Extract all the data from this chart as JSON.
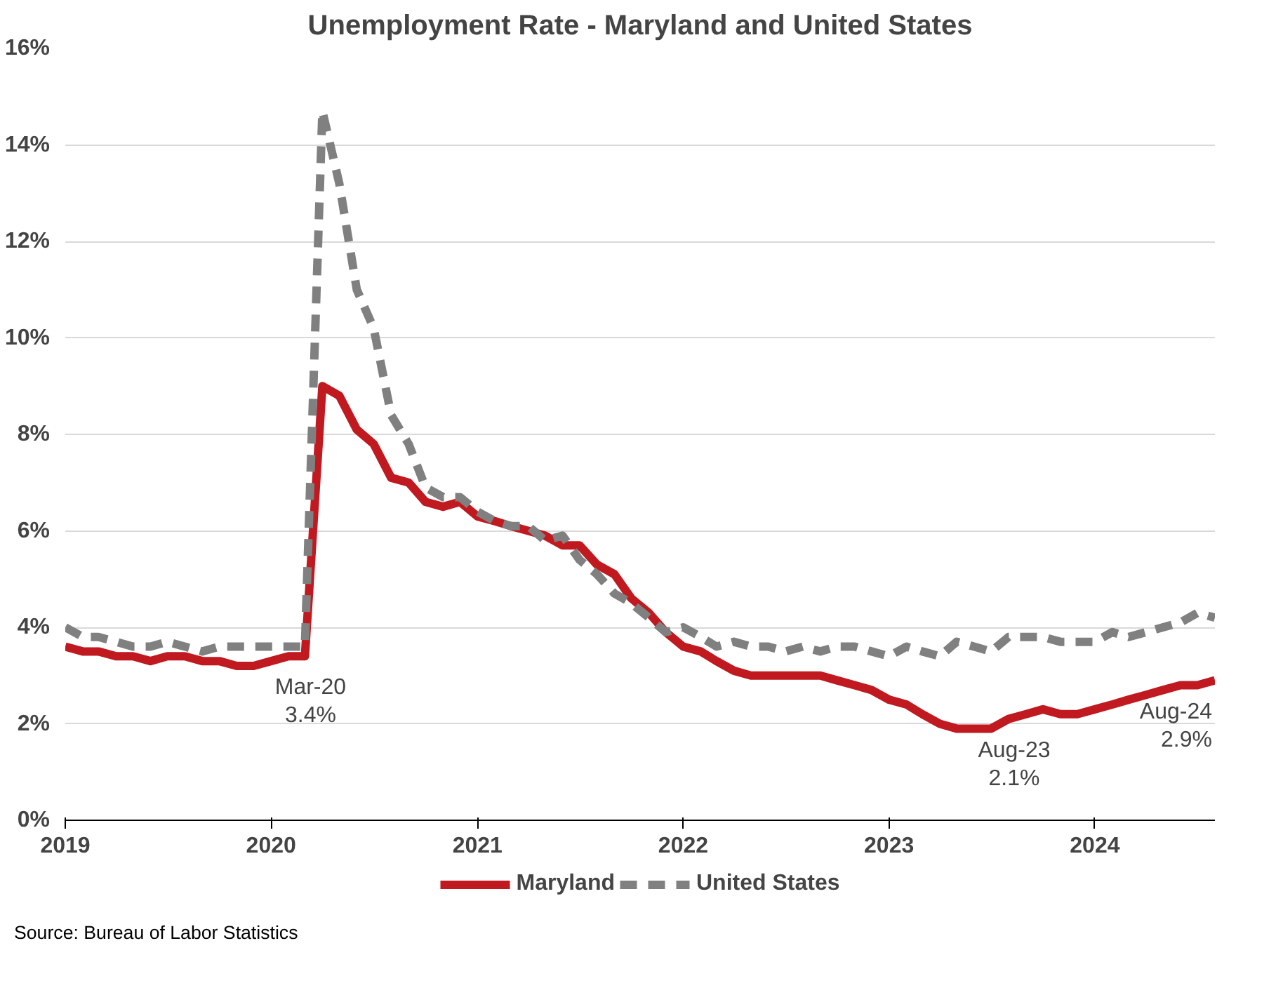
{
  "chart_data": {
    "type": "line",
    "title": "Unemployment Rate - Maryland and United States",
    "x": [
      "2019-01",
      "2019-02",
      "2019-03",
      "2019-04",
      "2019-05",
      "2019-06",
      "2019-07",
      "2019-08",
      "2019-09",
      "2019-10",
      "2019-11",
      "2019-12",
      "2020-01",
      "2020-02",
      "2020-03",
      "2020-04",
      "2020-05",
      "2020-06",
      "2020-07",
      "2020-08",
      "2020-09",
      "2020-10",
      "2020-11",
      "2020-12",
      "2021-01",
      "2021-02",
      "2021-03",
      "2021-04",
      "2021-05",
      "2021-06",
      "2021-07",
      "2021-08",
      "2021-09",
      "2021-10",
      "2021-11",
      "2021-12",
      "2022-01",
      "2022-02",
      "2022-03",
      "2022-04",
      "2022-05",
      "2022-06",
      "2022-07",
      "2022-08",
      "2022-09",
      "2022-10",
      "2022-11",
      "2022-12",
      "2023-01",
      "2023-02",
      "2023-03",
      "2023-04",
      "2023-05",
      "2023-06",
      "2023-07",
      "2023-08",
      "2023-09",
      "2023-10",
      "2023-11",
      "2023-12",
      "2024-01",
      "2024-02",
      "2024-03",
      "2024-04",
      "2024-05",
      "2024-06",
      "2024-07",
      "2024-08"
    ],
    "series": [
      {
        "name": "Maryland",
        "color": "#c0191f",
        "line_style": "solid",
        "values": [
          3.6,
          3.5,
          3.5,
          3.4,
          3.4,
          3.3,
          3.4,
          3.4,
          3.3,
          3.3,
          3.2,
          3.2,
          3.3,
          3.4,
          3.4,
          9.0,
          8.8,
          8.1,
          7.8,
          7.1,
          7.0,
          6.6,
          6.5,
          6.6,
          6.3,
          6.2,
          6.1,
          6.0,
          5.9,
          5.7,
          5.7,
          5.3,
          5.1,
          4.6,
          4.3,
          3.9,
          3.6,
          3.5,
          3.3,
          3.1,
          3.0,
          3.0,
          3.0,
          3.0,
          3.0,
          2.9,
          2.8,
          2.7,
          2.5,
          2.4,
          2.2,
          2.0,
          1.9,
          1.9,
          1.9,
          2.1,
          2.2,
          2.3,
          2.2,
          2.2,
          2.3,
          2.4,
          2.5,
          2.6,
          2.7,
          2.8,
          2.8,
          2.9
        ]
      },
      {
        "name": "United States",
        "color": "#808080",
        "line_style": "dashed",
        "values": [
          4.0,
          3.8,
          3.8,
          3.7,
          3.6,
          3.6,
          3.7,
          3.6,
          3.5,
          3.6,
          3.6,
          3.6,
          3.6,
          3.6,
          3.6,
          14.7,
          13.2,
          11.0,
          10.2,
          8.4,
          7.8,
          6.9,
          6.7,
          6.7,
          6.4,
          6.2,
          6.1,
          6.1,
          5.8,
          5.9,
          5.4,
          5.1,
          4.7,
          4.5,
          4.2,
          3.9,
          4.0,
          3.8,
          3.6,
          3.7,
          3.6,
          3.6,
          3.5,
          3.6,
          3.5,
          3.6,
          3.6,
          3.5,
          3.4,
          3.6,
          3.5,
          3.4,
          3.7,
          3.6,
          3.5,
          3.8,
          3.8,
          3.8,
          3.7,
          3.7,
          3.7,
          3.9,
          3.8,
          3.9,
          4.0,
          4.1,
          4.3,
          4.2
        ]
      }
    ],
    "xlim": [
      "2019-01",
      "2024-08"
    ],
    "xticks": [
      {
        "value": "2019-01",
        "label": "2019"
      },
      {
        "value": "2020-01",
        "label": "2020"
      },
      {
        "value": "2021-01",
        "label": "2021"
      },
      {
        "value": "2022-01",
        "label": "2022"
      },
      {
        "value": "2023-01",
        "label": "2023"
      },
      {
        "value": "2024-01",
        "label": "2024"
      }
    ],
    "ylim": [
      0,
      16
    ],
    "yticks": [
      {
        "value": 0,
        "label": "0%"
      },
      {
        "value": 2,
        "label": "2%"
      },
      {
        "value": 4,
        "label": "4%"
      },
      {
        "value": 6,
        "label": "6%"
      },
      {
        "value": 8,
        "label": "8%"
      },
      {
        "value": 10,
        "label": "10%"
      },
      {
        "value": 12,
        "label": "12%"
      },
      {
        "value": 14,
        "label": "14%"
      },
      {
        "value": 16,
        "label": "16%"
      }
    ],
    "grid": "y",
    "legend": "bottom",
    "annotations": [
      {
        "text": "Mar-20\n3.4%",
        "x": "2020-03",
        "y": 3.4
      },
      {
        "text": "Aug-23\n2.1%",
        "x": "2023-08",
        "y": 2.1
      },
      {
        "text": "Aug-24\n2.9%",
        "x": "2024-08",
        "y": 2.9
      },
      "Source: Bureau of Labor Statistics"
    ]
  }
}
